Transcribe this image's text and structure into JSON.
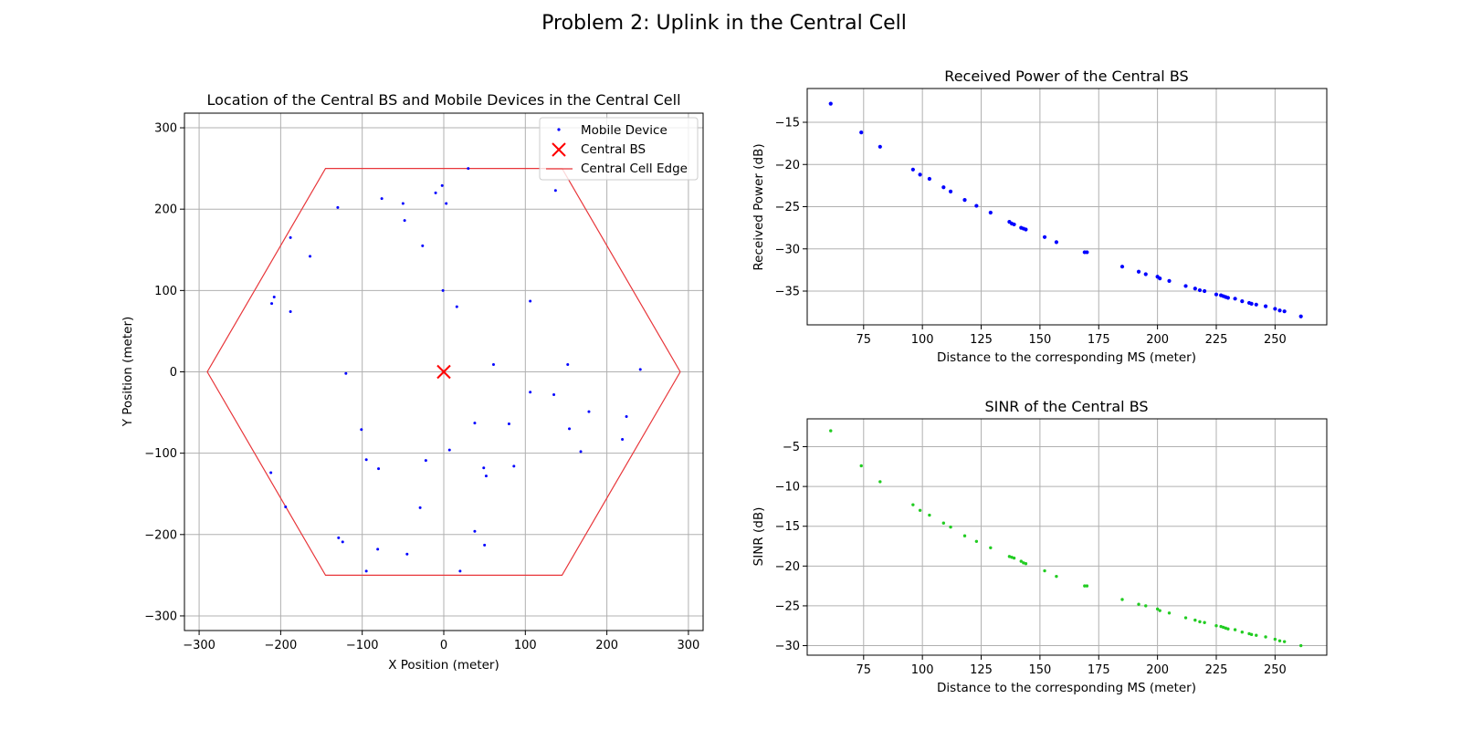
{
  "figure": {
    "suptitle": "Problem 2: Uplink in the Central Cell"
  },
  "colors": {
    "mobile": "#0000ff",
    "bs": "#ff0000",
    "edge": "#e8363a",
    "received": "#0000ff",
    "sinr": "#22cc22"
  },
  "chart_data": [
    {
      "type": "scatter",
      "title": "Location of the Central BS and Mobile Devices in the Central Cell",
      "xlabel": "X Position (meter)",
      "ylabel": "Y Position (meter)",
      "xlim": [
        -318,
        318
      ],
      "ylim": [
        -318,
        318
      ],
      "xticks": [
        -300,
        -200,
        -100,
        0,
        100,
        200,
        300
      ],
      "yticks": [
        -300,
        -200,
        -100,
        0,
        100,
        200,
        300
      ],
      "xtick_labels": [
        "−300",
        "−200",
        "−100",
        "0",
        "100",
        "200",
        "300"
      ],
      "ytick_labels": [
        "−300",
        "−200",
        "−100",
        "0",
        "100",
        "200",
        "300"
      ],
      "grid": true,
      "legend": {
        "placement": "top-right",
        "entries": [
          "Mobile Device",
          "Central BS",
          "Central Cell Edge"
        ]
      },
      "series": [
        {
          "name": "Mobile Device",
          "kind": "points",
          "points": [
            [
              -130,
              202
            ],
            [
              -76,
              213
            ],
            [
              -50,
              207
            ],
            [
              -48,
              186
            ],
            [
              -10,
              220
            ],
            [
              -2,
              229
            ],
            [
              3,
              207
            ],
            [
              30,
              250
            ],
            [
              137,
              223
            ],
            [
              -188,
              165
            ],
            [
              -164,
              142
            ],
            [
              -26,
              155
            ],
            [
              -208,
              92
            ],
            [
              -211,
              84
            ],
            [
              -188,
              74
            ],
            [
              -1,
              100
            ],
            [
              16,
              80
            ],
            [
              106,
              87
            ],
            [
              -120,
              -2
            ],
            [
              61,
              9
            ],
            [
              152,
              9
            ],
            [
              241,
              3
            ],
            [
              -101,
              -71
            ],
            [
              106,
              -25
            ],
            [
              135,
              -28
            ],
            [
              224,
              -55
            ],
            [
              38,
              -63
            ],
            [
              80,
              -64
            ],
            [
              178,
              -49
            ],
            [
              154,
              -70
            ],
            [
              168,
              -98
            ],
            [
              219,
              -83
            ],
            [
              -95,
              -108
            ],
            [
              -80,
              -119
            ],
            [
              -22,
              -109
            ],
            [
              7,
              -96
            ],
            [
              49,
              -118
            ],
            [
              52,
              -128
            ],
            [
              86,
              -116
            ],
            [
              -212,
              -124
            ],
            [
              -194,
              -166
            ],
            [
              -29,
              -167
            ],
            [
              -129,
              -204
            ],
            [
              -124,
              -209
            ],
            [
              -81,
              -218
            ],
            [
              -45,
              -224
            ],
            [
              38,
              -196
            ],
            [
              50,
              -213
            ],
            [
              -95,
              -245
            ],
            [
              20,
              -245
            ]
          ]
        },
        {
          "name": "Central BS",
          "kind": "marker",
          "points": [
            [
              0,
              0
            ]
          ]
        },
        {
          "name": "Central Cell Edge",
          "kind": "line",
          "points": [
            [
              290,
              0
            ],
            [
              145,
              250
            ],
            [
              -145,
              250
            ],
            [
              -290,
              0
            ],
            [
              -145,
              -250
            ],
            [
              145,
              -250
            ],
            [
              290,
              0
            ]
          ]
        }
      ]
    },
    {
      "type": "scatter",
      "title": "Received Power of the Central BS",
      "xlabel": "Distance to the corresponding MS (meter)",
      "ylabel": "Received Power (dB)",
      "xlim": [
        51,
        272
      ],
      "ylim": [
        -39,
        -11
      ],
      "xticks": [
        75,
        100,
        125,
        150,
        175,
        200,
        225,
        250
      ],
      "yticks": [
        -15,
        -20,
        -25,
        -30,
        -35
      ],
      "xtick_labels": [
        "75",
        "100",
        "125",
        "150",
        "175",
        "200",
        "225",
        "250"
      ],
      "ytick_labels": [
        "−15",
        "−20",
        "−25",
        "−30",
        "−35"
      ],
      "grid": true,
      "series": [
        {
          "kind": "points",
          "points": [
            [
              61,
              -12.8
            ],
            [
              74,
              -16.2
            ],
            [
              82,
              -17.9
            ],
            [
              96,
              -20.6
            ],
            [
              99,
              -21.2
            ],
            [
              103,
              -21.7
            ],
            [
              109,
              -22.7
            ],
            [
              112,
              -23.2
            ],
            [
              118,
              -24.2
            ],
            [
              123,
              -24.9
            ],
            [
              129,
              -25.7
            ],
            [
              137,
              -26.8
            ],
            [
              138,
              -27.0
            ],
            [
              139,
              -27.1
            ],
            [
              142,
              -27.5
            ],
            [
              143,
              -27.6
            ],
            [
              144,
              -27.7
            ],
            [
              152,
              -28.6
            ],
            [
              157,
              -29.2
            ],
            [
              169,
              -30.4
            ],
            [
              170,
              -30.4
            ],
            [
              185,
              -32.1
            ],
            [
              192,
              -32.7
            ],
            [
              195,
              -33.0
            ],
            [
              200,
              -33.3
            ],
            [
              201,
              -33.5
            ],
            [
              205,
              -33.8
            ],
            [
              212,
              -34.4
            ],
            [
              216,
              -34.7
            ],
            [
              218,
              -34.9
            ],
            [
              220,
              -35.0
            ],
            [
              225,
              -35.4
            ],
            [
              227,
              -35.5
            ],
            [
              228,
              -35.6
            ],
            [
              229,
              -35.7
            ],
            [
              230,
              -35.8
            ],
            [
              233,
              -35.9
            ],
            [
              236,
              -36.2
            ],
            [
              239,
              -36.4
            ],
            [
              240,
              -36.5
            ],
            [
              242,
              -36.6
            ],
            [
              246,
              -36.8
            ],
            [
              250,
              -37.1
            ],
            [
              252,
              -37.3
            ],
            [
              254,
              -37.4
            ],
            [
              261,
              -38.0
            ]
          ]
        }
      ]
    },
    {
      "type": "scatter",
      "title": "SINR of the Central BS",
      "xlabel": "Distance to the corresponding MS (meter)",
      "ylabel": "SINR (dB)",
      "xlim": [
        51,
        272
      ],
      "ylim": [
        -31.2,
        -1.5
      ],
      "xticks": [
        75,
        100,
        125,
        150,
        175,
        200,
        225,
        250
      ],
      "yticks": [
        -5,
        -10,
        -15,
        -20,
        -25,
        -30
      ],
      "xtick_labels": [
        "75",
        "100",
        "125",
        "150",
        "175",
        "200",
        "225",
        "250"
      ],
      "ytick_labels": [
        "−5",
        "−10",
        "−15",
        "−20",
        "−25",
        "−30"
      ],
      "grid": true,
      "series": [
        {
          "kind": "points",
          "points": [
            [
              61,
              -3.0
            ],
            [
              74,
              -7.4
            ],
            [
              82,
              -9.4
            ],
            [
              96,
              -12.3
            ],
            [
              99,
              -13.0
            ],
            [
              103,
              -13.6
            ],
            [
              109,
              -14.6
            ],
            [
              112,
              -15.1
            ],
            [
              118,
              -16.2
            ],
            [
              123,
              -16.9
            ],
            [
              129,
              -17.7
            ],
            [
              137,
              -18.8
            ],
            [
              138,
              -18.9
            ],
            [
              139,
              -19.0
            ],
            [
              142,
              -19.4
            ],
            [
              143,
              -19.6
            ],
            [
              144,
              -19.7
            ],
            [
              152,
              -20.6
            ],
            [
              157,
              -21.3
            ],
            [
              169,
              -22.5
            ],
            [
              170,
              -22.5
            ],
            [
              185,
              -24.2
            ],
            [
              192,
              -24.8
            ],
            [
              195,
              -25.0
            ],
            [
              200,
              -25.4
            ],
            [
              201,
              -25.6
            ],
            [
              205,
              -25.9
            ],
            [
              212,
              -26.5
            ],
            [
              216,
              -26.8
            ],
            [
              218,
              -27.0
            ],
            [
              220,
              -27.1
            ],
            [
              225,
              -27.5
            ],
            [
              227,
              -27.6
            ],
            [
              228,
              -27.7
            ],
            [
              229,
              -27.8
            ],
            [
              230,
              -27.9
            ],
            [
              233,
              -28.0
            ],
            [
              236,
              -28.3
            ],
            [
              239,
              -28.5
            ],
            [
              240,
              -28.6
            ],
            [
              242,
              -28.7
            ],
            [
              246,
              -28.9
            ],
            [
              250,
              -29.2
            ],
            [
              252,
              -29.4
            ],
            [
              254,
              -29.5
            ],
            [
              261,
              -30.0
            ]
          ]
        }
      ]
    }
  ]
}
